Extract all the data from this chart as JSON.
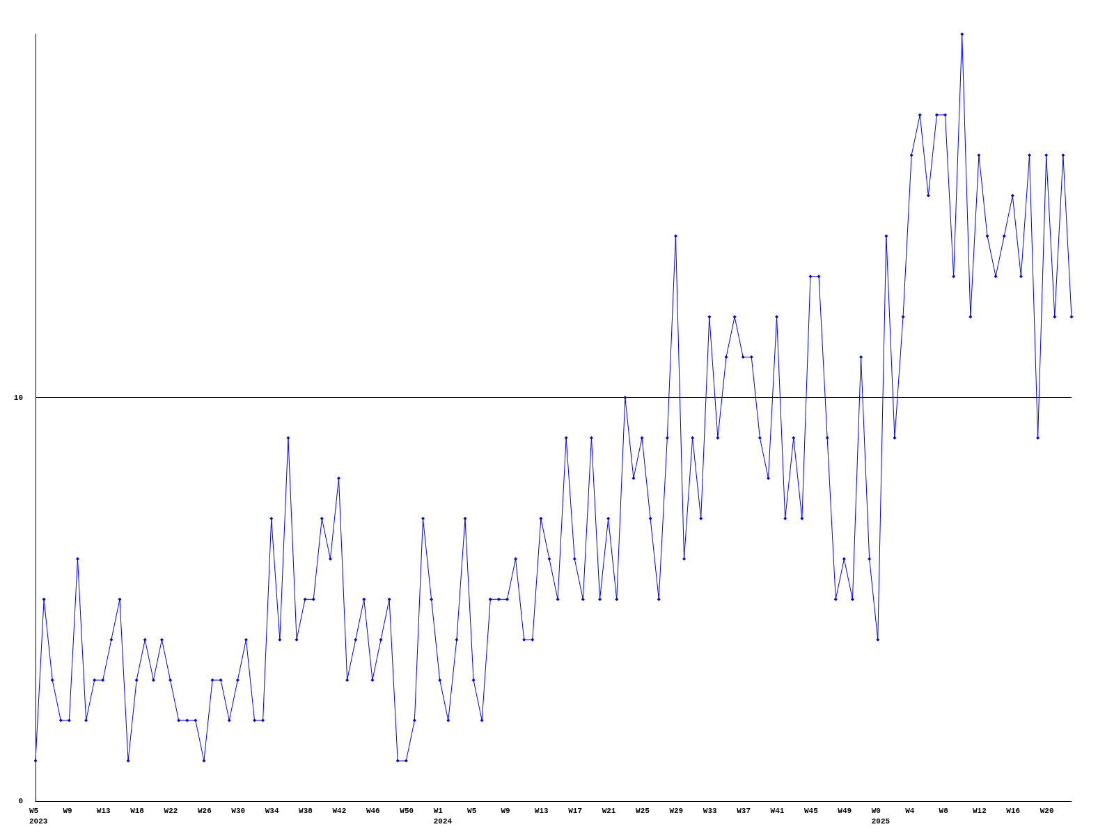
{
  "chart_data": {
    "type": "line",
    "categories": [
      "W5\n2023",
      null,
      null,
      null,
      "W9",
      null,
      null,
      null,
      "W13",
      null,
      null,
      null,
      "W18",
      null,
      null,
      null,
      "W22",
      null,
      null,
      null,
      "W26",
      null,
      null,
      null,
      "W30",
      null,
      null,
      null,
      "W34",
      null,
      null,
      null,
      "W38",
      null,
      null,
      null,
      "W42",
      null,
      null,
      null,
      "W46",
      null,
      null,
      null,
      "W50",
      null,
      null,
      null,
      "W1\n2024",
      null,
      null,
      null,
      "W5",
      null,
      null,
      null,
      "W9",
      null,
      null,
      null,
      "W13",
      null,
      null,
      null,
      "W17",
      null,
      null,
      null,
      "W21",
      null,
      null,
      null,
      "W25",
      null,
      null,
      null,
      "W29",
      null,
      null,
      null,
      "W33",
      null,
      null,
      null,
      "W37",
      null,
      null,
      null,
      "W41",
      null,
      null,
      null,
      "W45",
      null,
      null,
      null,
      "W49",
      null,
      null,
      null,
      "W0\n2025",
      null,
      null,
      null,
      "W4",
      null,
      null,
      null,
      "W8",
      null,
      null,
      null,
      "W12",
      null,
      null,
      null,
      "W16",
      null,
      null,
      null,
      "W20",
      null,
      null,
      null
    ],
    "series": [
      {
        "color": "#0000ff",
        "values": [
          1,
          5,
          3,
          2,
          2,
          6,
          2,
          3,
          3,
          4,
          5,
          1,
          3,
          4,
          3,
          4,
          3,
          2,
          2,
          2,
          1,
          3,
          3,
          2,
          3,
          4,
          2,
          2,
          7,
          4,
          9,
          4,
          5,
          5,
          7,
          6,
          8,
          3,
          4,
          5,
          3,
          4,
          5,
          1,
          1,
          2,
          7,
          5,
          3,
          2,
          4,
          7,
          3,
          2,
          5,
          5,
          5,
          6,
          4,
          4,
          7,
          6,
          5,
          9,
          6,
          5,
          9,
          5,
          7,
          5,
          10,
          8,
          9,
          7,
          5,
          9,
          14,
          6,
          9,
          7,
          12,
          9,
          11,
          12,
          11,
          11,
          9,
          8,
          12,
          7,
          9,
          7,
          13,
          13,
          9,
          5,
          6,
          5,
          11,
          6,
          4,
          14,
          9,
          12,
          16,
          17,
          15,
          17,
          17,
          13,
          19,
          12,
          16,
          14,
          13,
          14,
          15,
          13,
          16,
          9,
          16,
          12,
          16,
          12
        ]
      }
    ],
    "ylim": [
      0,
      19
    ],
    "yticks": [
      0,
      10
    ],
    "grid": "y",
    "marker": "diamond",
    "line_style": "solid"
  }
}
